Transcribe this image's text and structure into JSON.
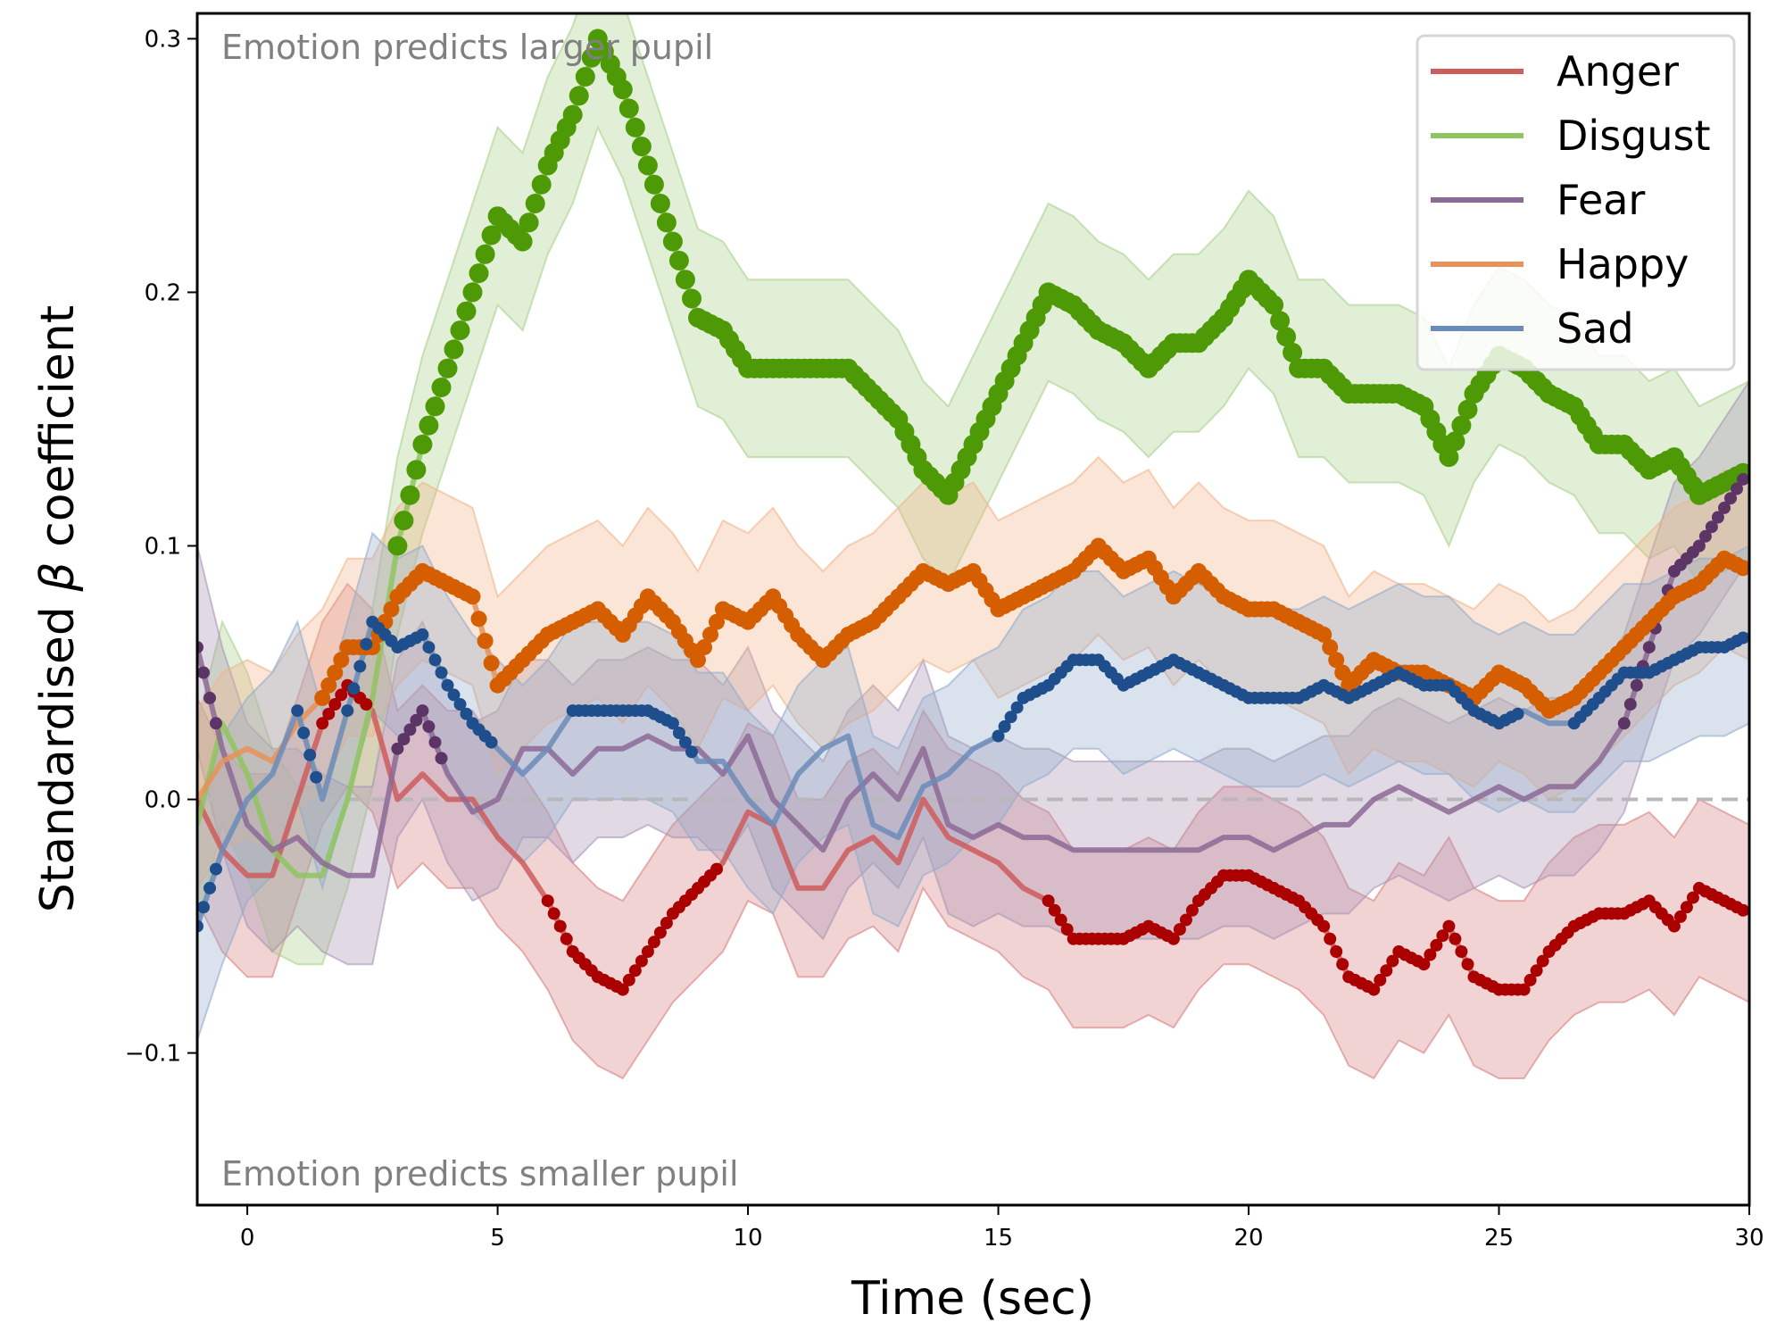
{
  "chart_data": {
    "type": "line",
    "title": "",
    "xlabel": "Time (sec)",
    "ylabel_prefix": "Standardised ",
    "ylabel_symbol": "β",
    "ylabel_suffix": " coefficient",
    "xlim": [
      -1,
      30
    ],
    "ylim": [
      -0.16,
      0.31
    ],
    "xticks": [
      0,
      5,
      10,
      15,
      20,
      25,
      30
    ],
    "xtick_labels": [
      "0",
      "5",
      "10",
      "15",
      "20",
      "25",
      "30"
    ],
    "yticks": [
      -0.1,
      0.0,
      0.1,
      0.2,
      0.3
    ],
    "ytick_labels": [
      "−0.1",
      "0.0",
      "0.1",
      "0.2",
      "0.3"
    ],
    "reference_line": {
      "y": 0.0,
      "style": "dashed",
      "color": "#b0b0b0"
    },
    "annotations": {
      "top": "Emotion predicts larger pupil",
      "bottom": "Emotion predicts smaller pupil"
    },
    "legend": {
      "placement": "top-right"
    },
    "grid": false,
    "x": [
      -1,
      -0.5,
      0,
      0.5,
      1,
      1.5,
      2,
      2.5,
      3,
      3.5,
      4,
      4.5,
      5,
      5.5,
      6,
      6.5,
      7,
      7.5,
      8,
      8.5,
      9,
      9.5,
      10,
      10.5,
      11,
      11.5,
      12,
      12.5,
      13,
      13.5,
      14,
      14.5,
      15,
      15.5,
      16,
      16.5,
      17,
      17.5,
      18,
      18.5,
      19,
      19.5,
      20,
      20.5,
      21,
      21.5,
      22,
      22.5,
      23,
      23.5,
      24,
      24.5,
      25,
      25.5,
      26,
      26.5,
      27,
      27.5,
      28,
      28.5,
      29,
      29.5,
      30
    ],
    "series": [
      {
        "name": "Anger",
        "line_color": "#cd5c5c",
        "marker_color": "#aa0000",
        "band_color": "#d98080",
        "values": [
          0.0,
          -0.02,
          -0.03,
          -0.03,
          0.0,
          0.03,
          0.045,
          0.035,
          0.0,
          0.01,
          0.0,
          0.0,
          -0.015,
          -0.025,
          -0.04,
          -0.06,
          -0.07,
          -0.075,
          -0.06,
          -0.045,
          -0.035,
          -0.025,
          -0.005,
          -0.01,
          -0.035,
          -0.035,
          -0.02,
          -0.015,
          -0.025,
          0.0,
          -0.015,
          -0.02,
          -0.025,
          -0.035,
          -0.04,
          -0.055,
          -0.055,
          -0.055,
          -0.05,
          -0.055,
          -0.04,
          -0.03,
          -0.03,
          -0.035,
          -0.04,
          -0.05,
          -0.07,
          -0.075,
          -0.06,
          -0.065,
          -0.05,
          -0.07,
          -0.075,
          -0.075,
          -0.06,
          -0.05,
          -0.045,
          -0.045,
          -0.04,
          -0.05,
          -0.035,
          -0.04,
          -0.045
        ],
        "ci_half_width": [
          0.04,
          0.04,
          0.04,
          0.04,
          0.04,
          0.04,
          0.04,
          0.04,
          0.035,
          0.035,
          0.035,
          0.035,
          0.035,
          0.035,
          0.035,
          0.035,
          0.035,
          0.035,
          0.035,
          0.035,
          0.035,
          0.035,
          0.035,
          0.035,
          0.035,
          0.035,
          0.035,
          0.035,
          0.035,
          0.035,
          0.035,
          0.035,
          0.035,
          0.035,
          0.035,
          0.035,
          0.035,
          0.035,
          0.035,
          0.035,
          0.035,
          0.035,
          0.035,
          0.035,
          0.035,
          0.035,
          0.035,
          0.035,
          0.035,
          0.035,
          0.035,
          0.035,
          0.035,
          0.035,
          0.035,
          0.035,
          0.035,
          0.035,
          0.035,
          0.035,
          0.035,
          0.035,
          0.035
        ],
        "significant": [
          false,
          false,
          false,
          false,
          false,
          true,
          true,
          false,
          false,
          false,
          false,
          false,
          false,
          false,
          true,
          true,
          true,
          true,
          true,
          true,
          true,
          false,
          false,
          false,
          false,
          false,
          false,
          false,
          false,
          false,
          false,
          false,
          false,
          false,
          true,
          true,
          true,
          true,
          true,
          true,
          true,
          true,
          true,
          true,
          true,
          true,
          true,
          true,
          true,
          true,
          true,
          true,
          true,
          true,
          true,
          true,
          true,
          true,
          true,
          true,
          true,
          true,
          true
        ]
      },
      {
        "name": "Disgust",
        "line_color": "#8fc45f",
        "marker_color": "#4e9a06",
        "band_color": "#a8d08a",
        "values": [
          -0.01,
          0.03,
          0.01,
          -0.02,
          -0.03,
          -0.03,
          0.0,
          0.04,
          0.1,
          0.14,
          0.17,
          0.2,
          0.23,
          0.22,
          0.25,
          0.27,
          0.3,
          0.28,
          0.25,
          0.22,
          0.19,
          0.185,
          0.17,
          0.17,
          0.17,
          0.17,
          0.17,
          0.16,
          0.15,
          0.13,
          0.12,
          0.14,
          0.16,
          0.18,
          0.2,
          0.195,
          0.185,
          0.18,
          0.17,
          0.18,
          0.18,
          0.19,
          0.205,
          0.195,
          0.17,
          0.17,
          0.16,
          0.16,
          0.16,
          0.155,
          0.135,
          0.16,
          0.175,
          0.17,
          0.16,
          0.155,
          0.14,
          0.14,
          0.13,
          0.135,
          0.12,
          0.125,
          0.13
        ],
        "ci_half_width": [
          0.04,
          0.04,
          0.04,
          0.04,
          0.035,
          0.035,
          0.035,
          0.035,
          0.035,
          0.035,
          0.035,
          0.035,
          0.035,
          0.035,
          0.035,
          0.035,
          0.035,
          0.035,
          0.035,
          0.035,
          0.035,
          0.035,
          0.035,
          0.035,
          0.035,
          0.035,
          0.035,
          0.035,
          0.035,
          0.035,
          0.035,
          0.035,
          0.035,
          0.035,
          0.035,
          0.035,
          0.035,
          0.035,
          0.035,
          0.035,
          0.035,
          0.035,
          0.035,
          0.035,
          0.035,
          0.035,
          0.035,
          0.035,
          0.035,
          0.035,
          0.035,
          0.035,
          0.035,
          0.035,
          0.035,
          0.035,
          0.035,
          0.035,
          0.035,
          0.035,
          0.035,
          0.035,
          0.035
        ],
        "significant": [
          false,
          false,
          false,
          false,
          false,
          false,
          false,
          false,
          true,
          true,
          true,
          true,
          true,
          true,
          true,
          true,
          true,
          true,
          true,
          true,
          true,
          true,
          true,
          true,
          true,
          true,
          true,
          true,
          true,
          true,
          true,
          true,
          true,
          true,
          true,
          true,
          true,
          true,
          true,
          true,
          true,
          true,
          true,
          true,
          true,
          true,
          true,
          true,
          true,
          true,
          true,
          true,
          true,
          true,
          true,
          true,
          true,
          true,
          true,
          true,
          true,
          true,
          true
        ]
      },
      {
        "name": "Fear",
        "line_color": "#8c6a96",
        "marker_color": "#5c3566",
        "band_color": "#a894b4",
        "values": [
          0.06,
          0.02,
          -0.01,
          -0.02,
          -0.015,
          -0.025,
          -0.03,
          -0.03,
          0.02,
          0.035,
          0.01,
          -0.005,
          0.0,
          0.02,
          0.02,
          0.01,
          0.02,
          0.02,
          0.025,
          0.02,
          0.02,
          0.01,
          0.025,
          0.0,
          -0.01,
          -0.02,
          0.0,
          0.01,
          0.0,
          0.02,
          -0.01,
          -0.015,
          -0.01,
          -0.015,
          -0.015,
          -0.02,
          -0.02,
          -0.02,
          -0.02,
          -0.02,
          -0.02,
          -0.015,
          -0.015,
          -0.02,
          -0.015,
          -0.01,
          -0.01,
          0.0,
          0.005,
          0.0,
          -0.005,
          0.0,
          0.005,
          0.0,
          0.005,
          0.005,
          0.015,
          0.03,
          0.06,
          0.09,
          0.1,
          0.115,
          0.13
        ],
        "ci_half_width": [
          0.04,
          0.04,
          0.04,
          0.04,
          0.035,
          0.035,
          0.035,
          0.035,
          0.035,
          0.035,
          0.035,
          0.035,
          0.035,
          0.035,
          0.035,
          0.035,
          0.035,
          0.035,
          0.035,
          0.035,
          0.035,
          0.035,
          0.035,
          0.035,
          0.035,
          0.035,
          0.035,
          0.035,
          0.035,
          0.035,
          0.035,
          0.035,
          0.035,
          0.035,
          0.035,
          0.035,
          0.035,
          0.035,
          0.035,
          0.035,
          0.035,
          0.035,
          0.035,
          0.035,
          0.035,
          0.035,
          0.035,
          0.035,
          0.035,
          0.035,
          0.035,
          0.035,
          0.035,
          0.035,
          0.035,
          0.035,
          0.035,
          0.035,
          0.035,
          0.035,
          0.035,
          0.035,
          0.035
        ],
        "significant": [
          true,
          false,
          false,
          false,
          false,
          false,
          false,
          false,
          true,
          true,
          false,
          false,
          false,
          false,
          false,
          false,
          false,
          false,
          false,
          false,
          false,
          false,
          false,
          false,
          false,
          false,
          false,
          false,
          false,
          false,
          false,
          false,
          false,
          false,
          false,
          false,
          false,
          false,
          false,
          false,
          false,
          false,
          false,
          false,
          false,
          false,
          false,
          false,
          false,
          false,
          false,
          false,
          false,
          false,
          false,
          false,
          false,
          true,
          true,
          true,
          true,
          true,
          true
        ]
      },
      {
        "name": "Happy",
        "line_color": "#e8925a",
        "marker_color": "#d55e00",
        "band_color": "#f0b48a",
        "values": [
          0.0,
          0.015,
          0.02,
          0.015,
          0.03,
          0.04,
          0.06,
          0.06,
          0.08,
          0.09,
          0.085,
          0.08,
          0.045,
          0.055,
          0.065,
          0.07,
          0.075,
          0.065,
          0.08,
          0.07,
          0.055,
          0.075,
          0.07,
          0.08,
          0.065,
          0.055,
          0.065,
          0.07,
          0.08,
          0.09,
          0.085,
          0.09,
          0.075,
          0.08,
          0.085,
          0.09,
          0.1,
          0.09,
          0.095,
          0.08,
          0.09,
          0.08,
          0.075,
          0.075,
          0.07,
          0.065,
          0.045,
          0.055,
          0.05,
          0.05,
          0.045,
          0.04,
          0.05,
          0.045,
          0.035,
          0.04,
          0.05,
          0.06,
          0.07,
          0.08,
          0.085,
          0.095,
          0.09
        ],
        "ci_half_width": [
          0.035,
          0.035,
          0.035,
          0.035,
          0.035,
          0.035,
          0.035,
          0.035,
          0.035,
          0.035,
          0.035,
          0.035,
          0.035,
          0.035,
          0.035,
          0.035,
          0.035,
          0.035,
          0.035,
          0.035,
          0.035,
          0.035,
          0.035,
          0.035,
          0.035,
          0.035,
          0.035,
          0.035,
          0.035,
          0.035,
          0.035,
          0.035,
          0.035,
          0.035,
          0.035,
          0.035,
          0.035,
          0.035,
          0.035,
          0.035,
          0.035,
          0.035,
          0.035,
          0.035,
          0.035,
          0.035,
          0.035,
          0.035,
          0.035,
          0.035,
          0.035,
          0.035,
          0.035,
          0.035,
          0.035,
          0.035,
          0.035,
          0.035,
          0.035,
          0.035,
          0.035,
          0.035,
          0.035
        ],
        "significant": [
          false,
          false,
          false,
          false,
          false,
          true,
          true,
          true,
          true,
          true,
          true,
          true,
          true,
          true,
          true,
          true,
          true,
          true,
          true,
          true,
          true,
          true,
          true,
          true,
          true,
          true,
          true,
          true,
          true,
          true,
          true,
          true,
          true,
          true,
          true,
          true,
          true,
          true,
          true,
          true,
          true,
          true,
          true,
          true,
          true,
          true,
          true,
          true,
          true,
          true,
          true,
          true,
          true,
          true,
          true,
          true,
          true,
          true,
          true,
          true,
          true,
          true,
          true
        ]
      },
      {
        "name": "Sad",
        "line_color": "#6b8cb8",
        "marker_color": "#1f4e8c",
        "band_color": "#93abcc",
        "values": [
          -0.05,
          -0.02,
          0.0,
          0.01,
          0.035,
          0.0,
          0.035,
          0.07,
          0.06,
          0.065,
          0.045,
          0.03,
          0.02,
          0.01,
          0.02,
          0.035,
          0.035,
          0.035,
          0.035,
          0.03,
          0.015,
          0.015,
          0.0,
          -0.01,
          0.01,
          0.02,
          0.025,
          -0.01,
          -0.015,
          0.005,
          0.01,
          0.02,
          0.025,
          0.04,
          0.045,
          0.055,
          0.055,
          0.045,
          0.05,
          0.055,
          0.05,
          0.045,
          0.04,
          0.04,
          0.04,
          0.045,
          0.04,
          0.045,
          0.05,
          0.045,
          0.045,
          0.035,
          0.03,
          0.035,
          0.03,
          0.03,
          0.04,
          0.05,
          0.05,
          0.055,
          0.06,
          0.06,
          0.065
        ],
        "ci_half_width": [
          0.045,
          0.045,
          0.04,
          0.04,
          0.035,
          0.035,
          0.035,
          0.035,
          0.035,
          0.035,
          0.035,
          0.035,
          0.035,
          0.035,
          0.035,
          0.035,
          0.035,
          0.035,
          0.035,
          0.035,
          0.035,
          0.035,
          0.035,
          0.035,
          0.035,
          0.035,
          0.035,
          0.035,
          0.035,
          0.035,
          0.035,
          0.035,
          0.035,
          0.035,
          0.035,
          0.035,
          0.035,
          0.035,
          0.035,
          0.035,
          0.035,
          0.035,
          0.035,
          0.035,
          0.035,
          0.035,
          0.035,
          0.035,
          0.035,
          0.035,
          0.035,
          0.035,
          0.035,
          0.035,
          0.035,
          0.035,
          0.035,
          0.035,
          0.035,
          0.035,
          0.035,
          0.035,
          0.035
        ],
        "significant": [
          true,
          false,
          false,
          false,
          true,
          false,
          true,
          true,
          true,
          true,
          true,
          true,
          false,
          false,
          false,
          true,
          true,
          true,
          true,
          true,
          false,
          false,
          false,
          false,
          false,
          false,
          false,
          false,
          false,
          false,
          false,
          false,
          true,
          true,
          true,
          true,
          true,
          true,
          true,
          true,
          true,
          true,
          true,
          true,
          true,
          true,
          true,
          true,
          true,
          true,
          true,
          true,
          true,
          false,
          false,
          true,
          true,
          true,
          true,
          true,
          true,
          true,
          true
        ]
      }
    ]
  }
}
